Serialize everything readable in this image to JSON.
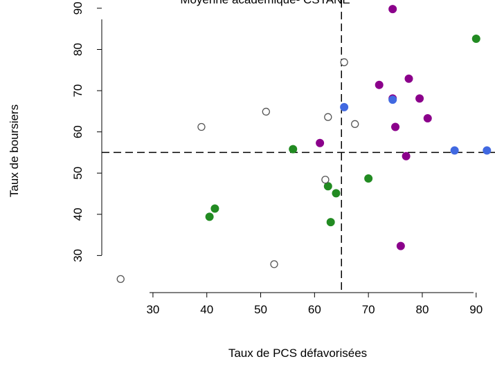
{
  "chart_data": {
    "type": "scatter",
    "title": "Moyenne académique- CSTANE",
    "xlabel": "Taux de PCS défavorisées",
    "ylabel": "Taux de boursiers",
    "xlim": [
      20.5,
      93.5
    ],
    "ylim": [
      21,
      92
    ],
    "x_ticks": [
      30,
      40,
      50,
      60,
      70,
      80,
      90
    ],
    "y_ticks": [
      30,
      40,
      50,
      60,
      70,
      80,
      90
    ],
    "x_tick_labels": [
      "30",
      "40",
      "50",
      "60",
      "70",
      "80",
      "90"
    ],
    "y_tick_labels": [
      "30",
      "40",
      "50",
      "60",
      "70",
      "80",
      "90"
    ],
    "reference_lines": {
      "x": 65,
      "y": 55
    },
    "grid": false,
    "colors": {
      "green": "#228B22",
      "purple": "#8B008B",
      "blue": "#4169E1",
      "open_edge": "#555555"
    },
    "series": [
      {
        "color": "green",
        "marker": "filled",
        "points": [
          [
            56,
            55.8
          ],
          [
            63,
            38.1
          ],
          [
            62.5,
            46.8
          ],
          [
            64,
            45.1
          ],
          [
            70,
            48.7
          ],
          [
            41.5,
            41.4
          ],
          [
            40.5,
            39.4
          ],
          [
            90,
            82.6
          ]
        ]
      },
      {
        "color": "purple",
        "marker": "filled",
        "points": [
          [
            74.5,
            89.8
          ],
          [
            72,
            71.4
          ],
          [
            77.5,
            72.9
          ],
          [
            74.5,
            68.1
          ],
          [
            79.5,
            68.1
          ],
          [
            61,
            57.3
          ],
          [
            75,
            61.2
          ],
          [
            81,
            63.3
          ],
          [
            77,
            54.1
          ],
          [
            76,
            32.3
          ]
        ]
      },
      {
        "color": "blue",
        "marker": "filled",
        "points": [
          [
            65.5,
            66.0
          ],
          [
            74.5,
            67.8
          ],
          [
            86,
            55.5
          ],
          [
            92,
            55.5
          ]
        ]
      },
      {
        "color": "open_edge",
        "marker": "open",
        "points": [
          [
            24,
            24.3
          ],
          [
            39,
            61.2
          ],
          [
            51,
            64.9
          ],
          [
            52.5,
            27.9
          ],
          [
            62,
            48.4
          ],
          [
            62.5,
            63.6
          ],
          [
            65.5,
            76.9
          ],
          [
            67.5,
            61.9
          ]
        ]
      }
    ]
  }
}
